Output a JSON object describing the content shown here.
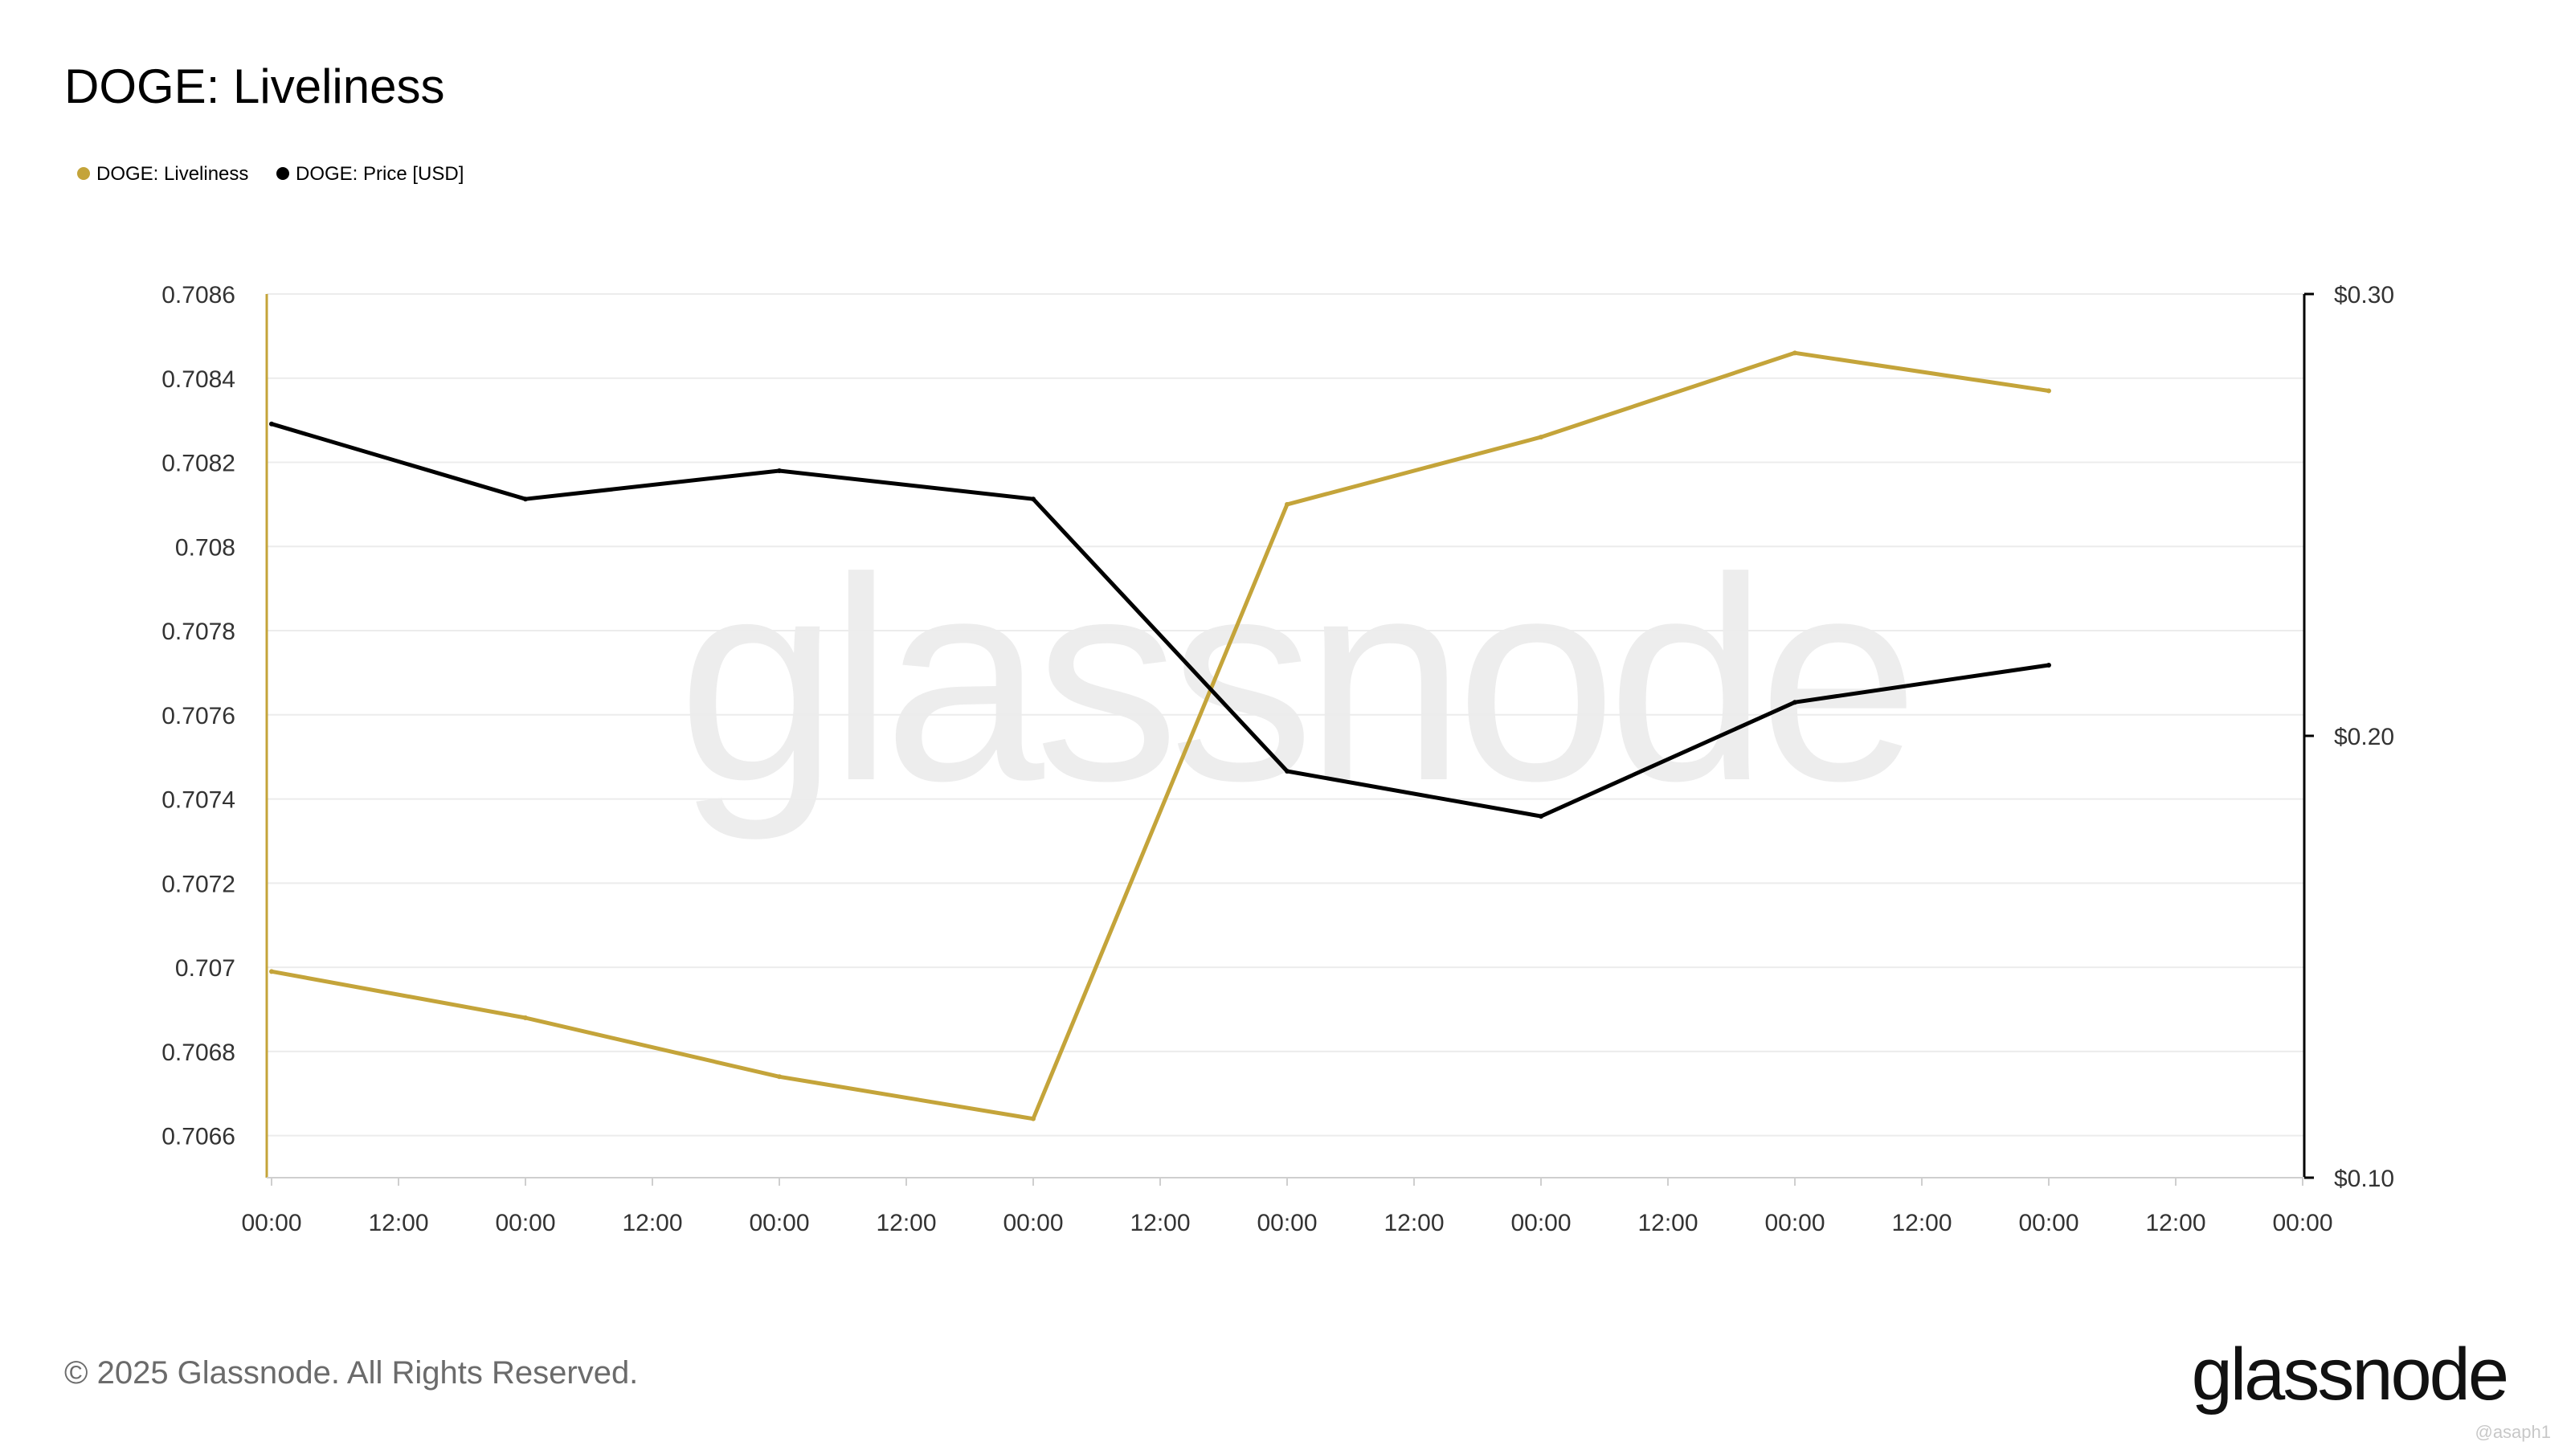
{
  "header": {
    "title": "DOGE: Liveliness"
  },
  "legend": {
    "items": [
      {
        "label": "DOGE: Liveliness",
        "color": "#C4A43A"
      },
      {
        "label": "DOGE: Price [USD]",
        "color": "#000000"
      }
    ]
  },
  "watermark": {
    "text": "glassnode"
  },
  "footer": {
    "copyright": "© 2025 Glassnode. All Rights Reserved.",
    "logo_text": "glassnode",
    "credit": "@asaph1"
  },
  "chart_data": {
    "type": "line",
    "title": "DOGE: Liveliness",
    "x_tick_labels": [
      "00:00",
      "12:00",
      "00:00",
      "12:00",
      "00:00",
      "12:00",
      "00:00",
      "12:00",
      "00:00",
      "12:00",
      "00:00",
      "12:00",
      "00:00",
      "12:00",
      "00:00",
      "12:00",
      "00:00"
    ],
    "x_point_tick_index": [
      0,
      2,
      4,
      6,
      8,
      10,
      12,
      14
    ],
    "y_left": {
      "ticks": [
        "0.7066",
        "0.7068",
        "0.707",
        "0.7072",
        "0.7074",
        "0.7076",
        "0.7078",
        "0.708",
        "0.7082",
        "0.7084",
        "0.7086"
      ],
      "range": [
        0.7065,
        0.7086
      ]
    },
    "y_right": {
      "ticks": [
        "$0.10",
        "$0.20",
        "$0.30"
      ],
      "tick_values": [
        0.1,
        0.2,
        0.3
      ],
      "range": [
        0.1,
        0.3
      ]
    },
    "grid": true,
    "legend_position": "top-left",
    "series": [
      {
        "name": "DOGE: Liveliness",
        "axis": "left",
        "color": "#C4A43A",
        "values": [
          0.70699,
          0.70688,
          0.70674,
          0.70664,
          0.7081,
          0.70826,
          0.70846,
          0.70837
        ]
      },
      {
        "name": "DOGE: Price [USD]",
        "axis": "right",
        "color": "#000000",
        "values": [
          0.2706,
          0.2536,
          0.26,
          0.2536,
          0.192,
          0.1818,
          0.2076,
          0.216
        ]
      }
    ]
  }
}
